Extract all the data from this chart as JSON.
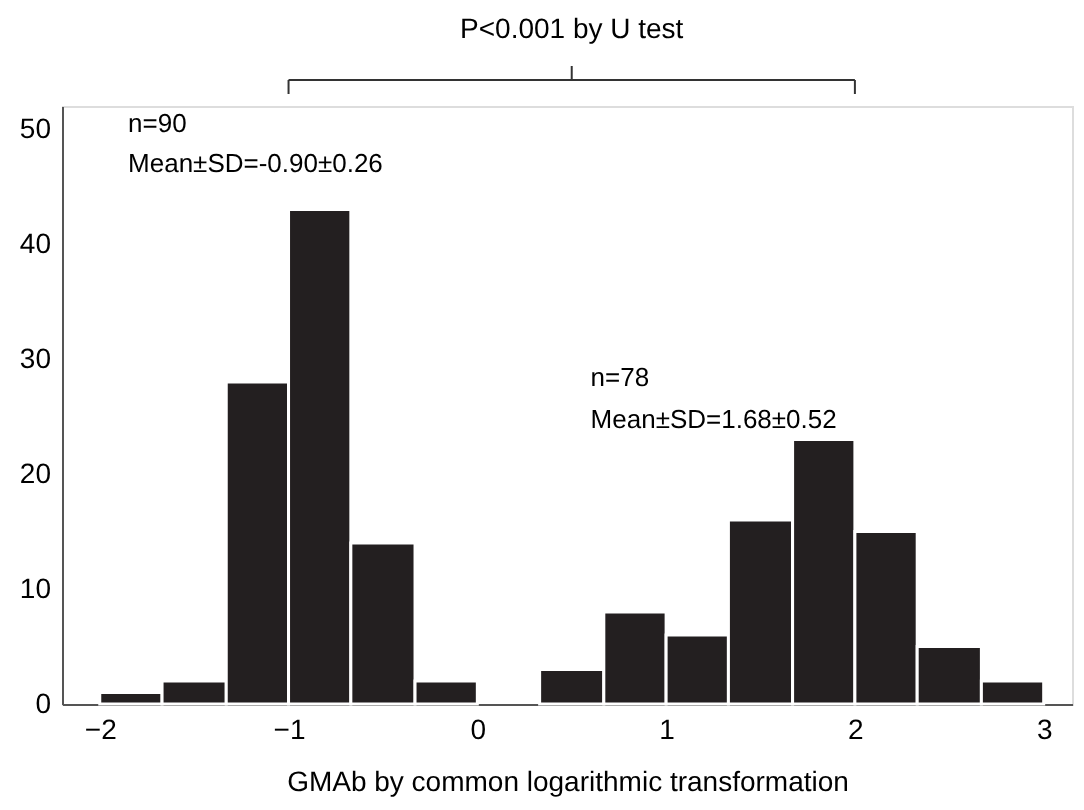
{
  "chart_data": {
    "type": "histogram",
    "xlabel": "GMAb by common logarithmic transformation",
    "bins": [
      -2,
      -1.67,
      -1.33,
      -1,
      -0.67,
      -0.33,
      0,
      0.33,
      0.67,
      1,
      1.33,
      1.67,
      2,
      2.33,
      2.67,
      3
    ],
    "values": [
      1,
      2,
      28,
      43,
      14,
      2,
      0,
      3,
      8,
      6,
      16,
      23,
      15,
      5,
      2
    ],
    "color": "#231f20",
    "xlim": [
      -2.2,
      3.15
    ],
    "xticks": [
      -2,
      -1,
      0,
      1,
      2,
      3
    ],
    "ylim": [
      0,
      52
    ],
    "yticks": [
      0,
      10,
      20,
      30,
      40,
      50
    ],
    "grid": false,
    "annotations": [
      "P<0.001 by U test",
      "n=90",
      "Mean±SD=-0.90±0.26",
      "n=78",
      "Mean±SD=1.68±0.52"
    ]
  }
}
